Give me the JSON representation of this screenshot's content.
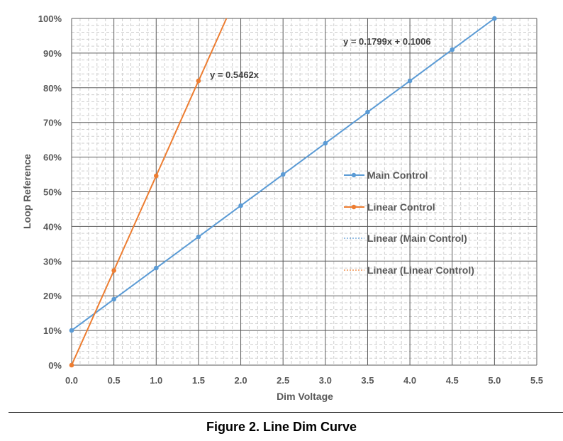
{
  "caption": "Figure 2. Line Dim Curve",
  "chart_data": {
    "type": "line",
    "xlabel": "Dim Voltage",
    "ylabel": "Loop Reference",
    "xlim": [
      0,
      5.5
    ],
    "ylim": [
      0,
      100
    ],
    "x_ticks": [
      "0.0",
      "0.5",
      "1.0",
      "1.5",
      "2.0",
      "2.5",
      "3.0",
      "3.5",
      "4.0",
      "4.5",
      "5.0",
      "5.5"
    ],
    "y_ticks": [
      "0%",
      "10%",
      "20%",
      "30%",
      "40%",
      "50%",
      "60%",
      "70%",
      "80%",
      "90%",
      "100%"
    ],
    "grid": true,
    "legend_position": "right",
    "series": [
      {
        "name": "Main Control",
        "color": "#5B9BD5",
        "x": [
          0,
          0.5,
          1.0,
          1.5,
          2.0,
          2.5,
          3.0,
          3.5,
          4.0,
          4.5,
          5.0
        ],
        "y": [
          10,
          19,
          28,
          37,
          46,
          55,
          64,
          73,
          82,
          91,
          100
        ]
      },
      {
        "name": "Linear Control",
        "color": "#ED7D31",
        "x": [
          0,
          0.5,
          1.0,
          1.5
        ],
        "y": [
          0,
          27.3,
          54.6,
          82
        ]
      }
    ],
    "trendlines": [
      {
        "name": "Linear (Main Control)",
        "color": "#5B9BD5",
        "slope": 17.99,
        "intercept": 10.06,
        "equation": "y = 0.1799x + 0.1006"
      },
      {
        "name": "Linear (Linear Control)",
        "color": "#ED7D31",
        "slope": 54.62,
        "intercept": 0,
        "equation": "y = 0.5462x"
      }
    ]
  }
}
